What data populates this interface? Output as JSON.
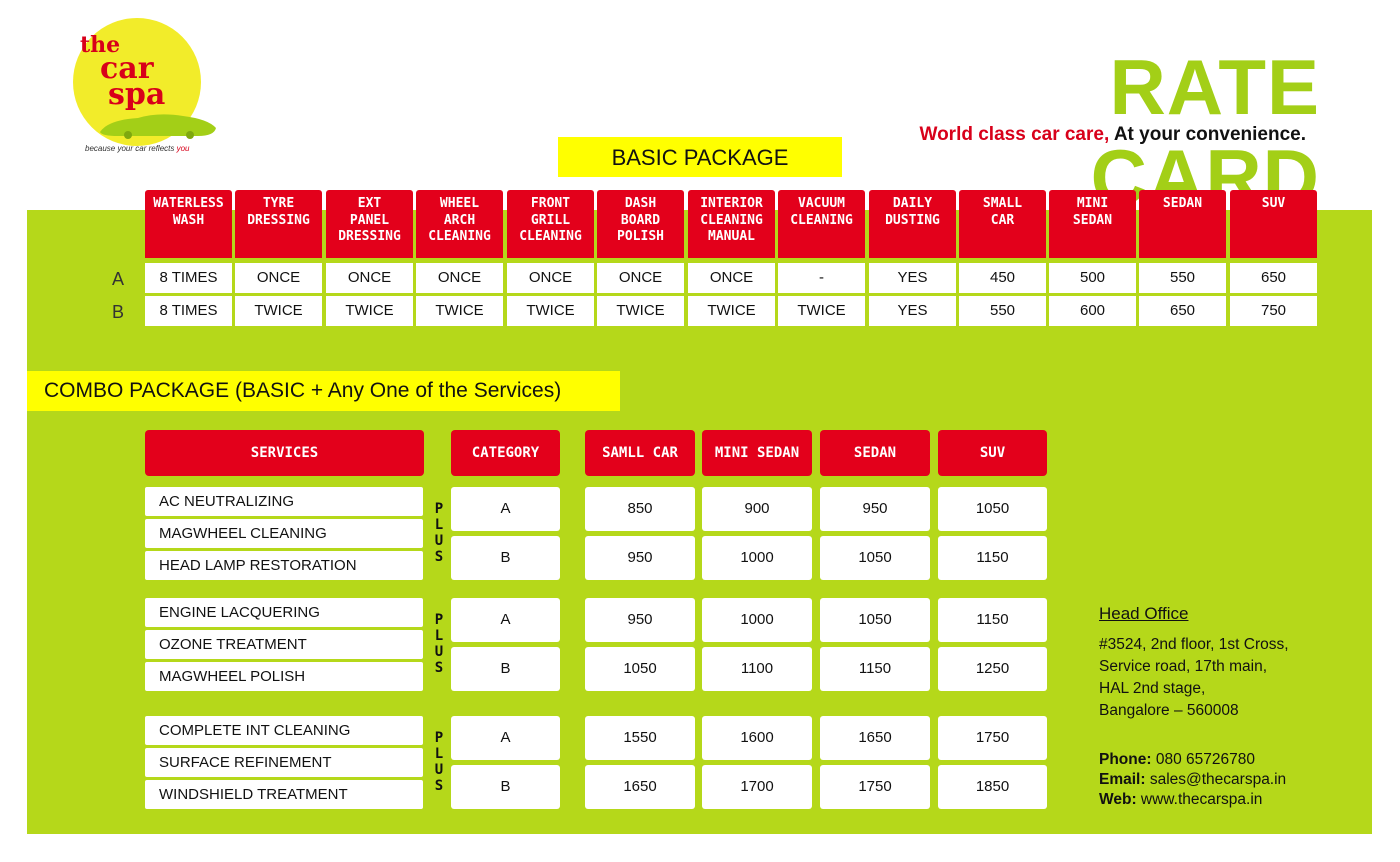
{
  "logo": {
    "line1": "the",
    "line2": "car",
    "line3": "spa",
    "tagline": "because your car reflects ",
    "tagline_accent": "you"
  },
  "title": "RATE CARD",
  "tagline": {
    "red": "World class car care,",
    "black": " At your convenience."
  },
  "colors": {
    "green": "#b5d81a",
    "red": "#e3001b",
    "yellow": "#ffff00",
    "title_green": "#a3cf17"
  },
  "basic": {
    "banner": "BASIC PACKAGE",
    "headers": [
      [
        "WATERLESS",
        "WASH"
      ],
      [
        "TYRE",
        "DRESSING"
      ],
      [
        "EXT",
        "PANEL",
        "DRESSING"
      ],
      [
        "WHEEL",
        "ARCH",
        "CLEANING"
      ],
      [
        "FRONT",
        "GRILL",
        "CLEANING"
      ],
      [
        "DASH",
        "BOARD",
        "POLISH"
      ],
      [
        "INTERIOR",
        "CLEANING",
        "MANUAL"
      ],
      [
        "VACUUM",
        "CLEANING"
      ],
      [
        "DAILY",
        "DUSTING"
      ],
      [
        "SMALL",
        "CAR"
      ],
      [
        "MINI",
        "SEDAN"
      ],
      [
        "SEDAN"
      ],
      [
        "SUV"
      ]
    ],
    "rows": [
      {
        "label": "A",
        "cells": [
          "8 TIMES",
          "ONCE",
          "ONCE",
          "ONCE",
          "ONCE",
          "ONCE",
          "ONCE",
          "-",
          "YES",
          "450",
          "500",
          "550",
          "650"
        ]
      },
      {
        "label": "B",
        "cells": [
          "8 TIMES",
          "TWICE",
          "TWICE",
          "TWICE",
          "TWICE",
          "TWICE",
          "TWICE",
          "TWICE",
          "YES",
          "550",
          "600",
          "650",
          "750"
        ]
      }
    ]
  },
  "combo": {
    "banner": "COMBO PACKAGE (BASIC  +  Any  One of the Services)",
    "headers": {
      "services": "SERVICES",
      "category": "CATEGORY",
      "small": "SAMLL CAR",
      "mini": "MINI SEDAN",
      "sedan": "SEDAN",
      "suv": "SUV"
    },
    "plus": [
      "P",
      "L",
      "U",
      "S"
    ],
    "groups": [
      {
        "services": [
          "AC NEUTRALIZING",
          "MAGWHEEL CLEANING",
          "HEAD LAMP RESTORATION"
        ],
        "rows": [
          {
            "cat": "A",
            "prices": [
              "850",
              "900",
              "950",
              "1050"
            ]
          },
          {
            "cat": "B",
            "prices": [
              "950",
              "1000",
              "1050",
              "1150"
            ]
          }
        ]
      },
      {
        "services": [
          "ENGINE LACQUERING",
          "OZONE TREATMENT",
          "MAGWHEEL POLISH"
        ],
        "rows": [
          {
            "cat": "A",
            "prices": [
              "950",
              "1000",
              "1050",
              "1150"
            ]
          },
          {
            "cat": "B",
            "prices": [
              "1050",
              "1100",
              "1150",
              "1250"
            ]
          }
        ]
      },
      {
        "services": [
          "COMPLETE INT CLEANING",
          "SURFACE REFINEMENT",
          "WINDSHIELD TREATMENT"
        ],
        "rows": [
          {
            "cat": "A",
            "prices": [
              "1550",
              "1600",
              "1650",
              "1750"
            ]
          },
          {
            "cat": "B",
            "prices": [
              "1650",
              "1700",
              "1750",
              "1850"
            ]
          }
        ]
      }
    ]
  },
  "office": {
    "heading": "Head Office",
    "address": [
      "#3524, 2nd floor, 1st Cross,",
      "Service road, 17th main,",
      "HAL 2nd stage,",
      "Bangalore – 560008"
    ],
    "phone_label": "Phone:",
    "phone": " 080 65726780",
    "email_label": "Email:",
    "email": " sales@thecarspa.in",
    "web_label": "Web:",
    "web": " www.thecarspa.in"
  }
}
